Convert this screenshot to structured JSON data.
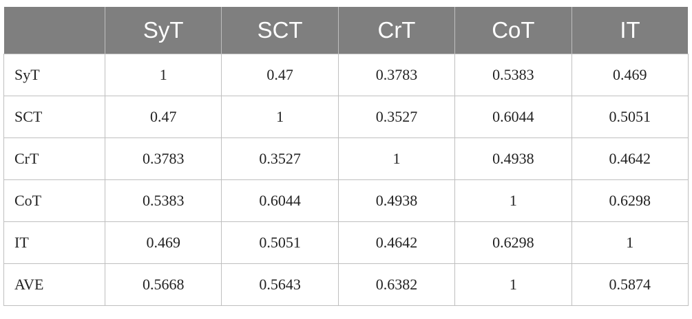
{
  "table": {
    "header_color": "#7f7f7f",
    "columns": [
      "",
      "SyT",
      "SCT",
      "CrT",
      "CoT",
      "IT"
    ],
    "rows": [
      {
        "label": "SyT",
        "cells": [
          "1",
          "0.47",
          "0.3783",
          "0.5383",
          "0.469"
        ]
      },
      {
        "label": "SCT",
        "cells": [
          "0.47",
          "1",
          "0.3527",
          "0.6044",
          "0.5051"
        ]
      },
      {
        "label": "CrT",
        "cells": [
          "0.3783",
          "0.3527",
          "1",
          "0.4938",
          "0.4642"
        ]
      },
      {
        "label": "CoT",
        "cells": [
          "0.5383",
          "0.6044",
          "0.4938",
          "1",
          "0.6298"
        ]
      },
      {
        "label": "IT",
        "cells": [
          "0.469",
          "0.5051",
          "0.4642",
          "0.6298",
          "1"
        ]
      },
      {
        "label": "AVE",
        "cells": [
          "0.5668",
          "0.5643",
          "0.6382",
          "1",
          "0.5874"
        ]
      }
    ]
  }
}
